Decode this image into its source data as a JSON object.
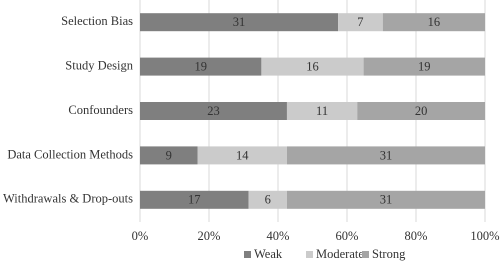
{
  "chart_data": {
    "type": "bar",
    "orientation": "horizontal",
    "stacked": true,
    "percent_stacked": true,
    "categories": [
      "Selection Bias",
      "Study Design",
      "Confounders",
      "Data Collection Methods",
      "Withdrawals & Drop-outs"
    ],
    "series": [
      {
        "name": "Weak",
        "color": "#7f7f7f",
        "values": [
          31,
          19,
          23,
          9,
          17
        ]
      },
      {
        "name": "Moderate",
        "color": "#cbcbcb",
        "values": [
          7,
          16,
          11,
          14,
          6
        ]
      },
      {
        "name": "Strong",
        "color": "#a5a5a5",
        "values": [
          16,
          19,
          20,
          31,
          31
        ]
      }
    ],
    "xlim": [
      0,
      100
    ],
    "xticks": [
      {
        "value": 0,
        "label": "0%"
      },
      {
        "value": 20,
        "label": "20%"
      },
      {
        "value": 40,
        "label": "40%"
      },
      {
        "value": 60,
        "label": "60%"
      },
      {
        "value": 80,
        "label": "80%"
      },
      {
        "value": 100,
        "label": "100%"
      }
    ],
    "grid": true,
    "legend": "bottom"
  }
}
